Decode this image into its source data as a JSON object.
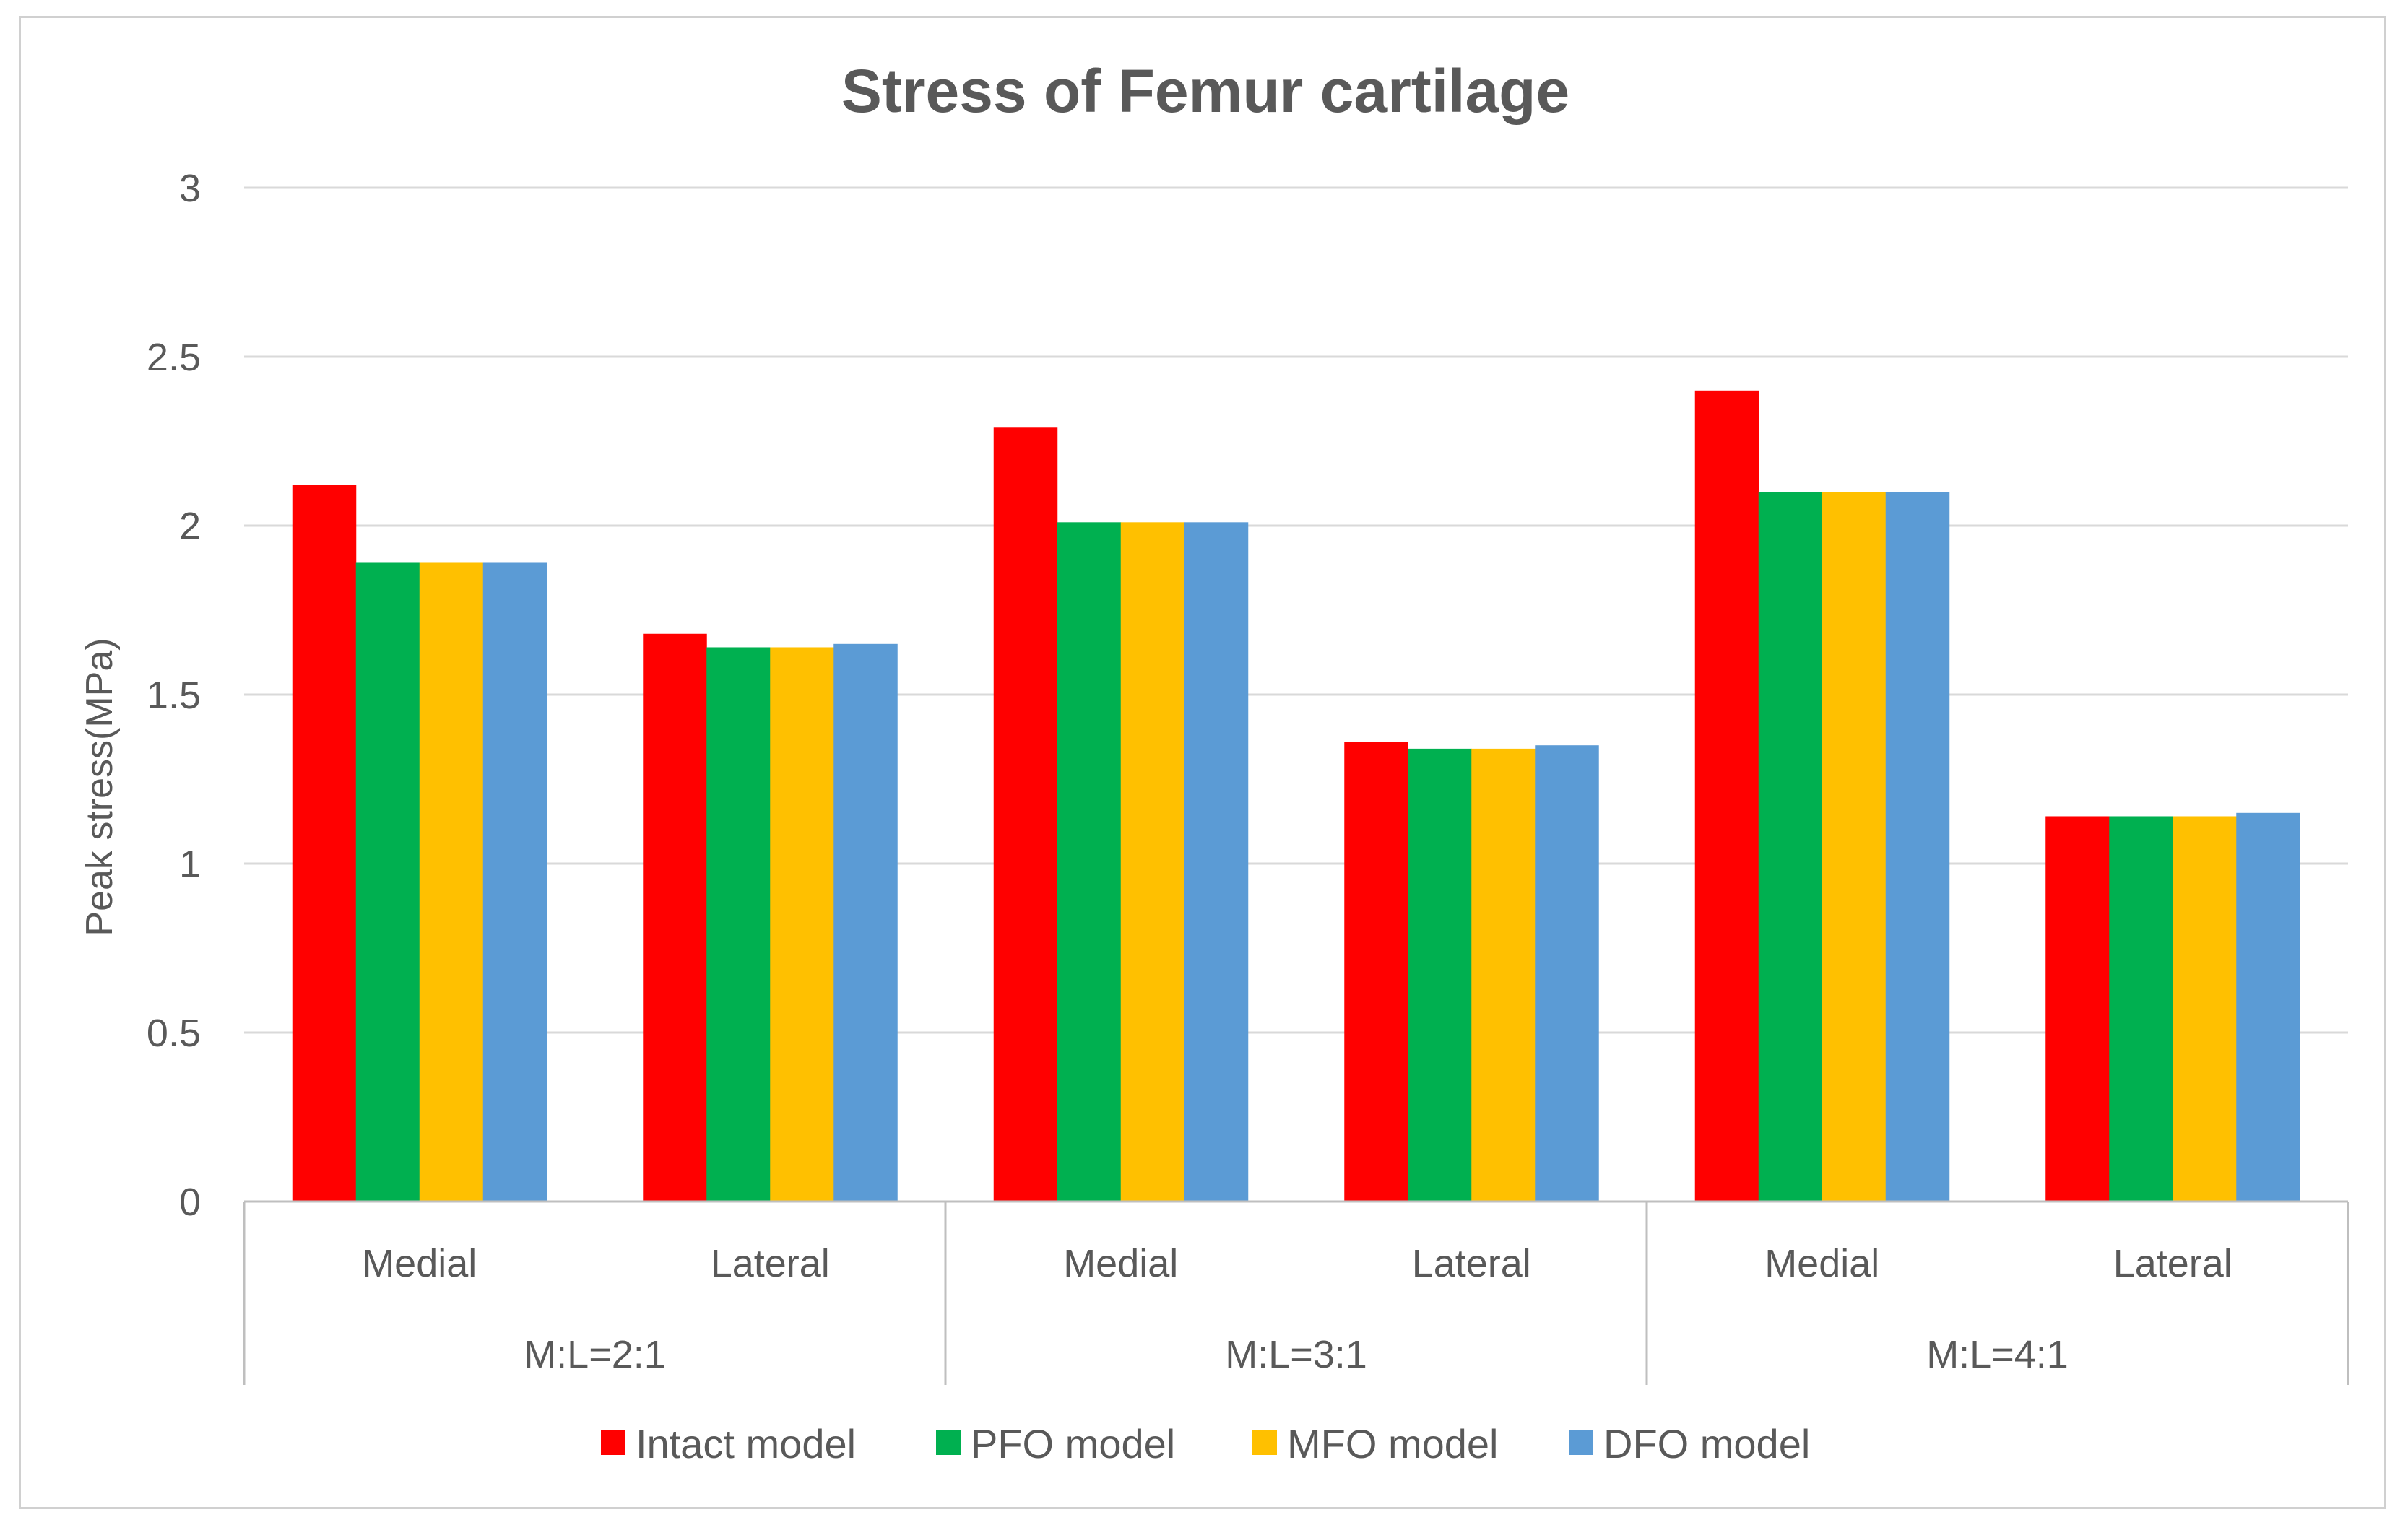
{
  "chart_data": {
    "type": "bar",
    "title": "Stress of  Femur cartilage",
    "xlabel": "",
    "ylabel": "Peak stress(MPa)",
    "ylim": [
      0,
      3
    ],
    "yticks": [
      0,
      0.5,
      1,
      1.5,
      2,
      2.5,
      3
    ],
    "ytick_labels": [
      "0",
      "0.5",
      "1",
      "1.5",
      "2",
      "2.5",
      "3"
    ],
    "grid": true,
    "legend_position": "bottom",
    "groups": [
      {
        "label": "M:L=2:1",
        "categories": [
          "Medial",
          "Lateral"
        ]
      },
      {
        "label": "M:L=3:1",
        "categories": [
          "Medial",
          "Lateral"
        ]
      },
      {
        "label": "M:L=4:1",
        "categories": [
          "Medial",
          "Lateral"
        ]
      }
    ],
    "categories": [
      "Medial",
      "Lateral",
      "Medial",
      "Lateral",
      "Medial",
      "Lateral"
    ],
    "series": [
      {
        "name": "Intact model",
        "color": "#ff0000",
        "values": [
          2.12,
          1.68,
          2.29,
          1.36,
          2.4,
          1.14
        ]
      },
      {
        "name": "PFO model",
        "color": "#00b050",
        "values": [
          1.89,
          1.64,
          2.01,
          1.34,
          2.1,
          1.14
        ]
      },
      {
        "name": "MFO model",
        "color": "#ffc000",
        "values": [
          1.89,
          1.64,
          2.01,
          1.34,
          2.1,
          1.14
        ]
      },
      {
        "name": "DFO model",
        "color": "#5b9bd5",
        "values": [
          1.89,
          1.65,
          2.01,
          1.35,
          2.1,
          1.15
        ]
      }
    ]
  },
  "colors": {
    "gridline": "#d9d9d9",
    "axis": "#bfbfbf",
    "text": "#595959"
  }
}
